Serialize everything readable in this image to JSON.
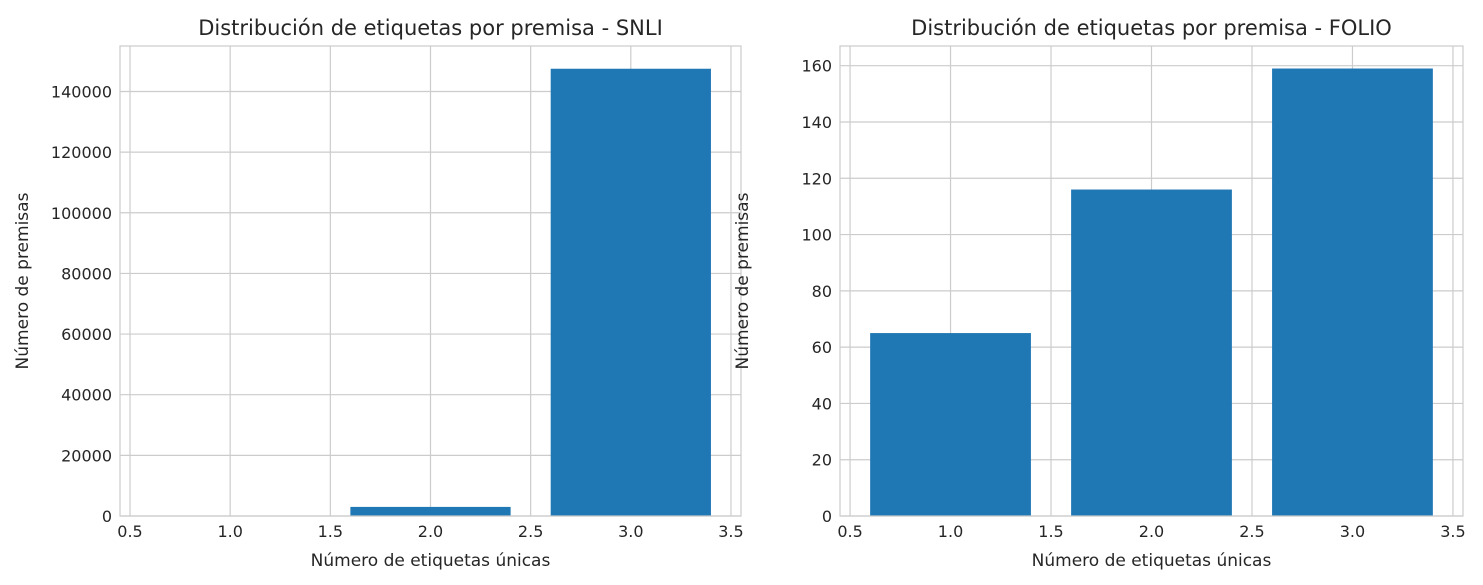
{
  "chart_data": [
    {
      "type": "bar",
      "title": "Distribución de etiquetas por premisa - SNLI",
      "xlabel": "Número de etiquetas únicas",
      "ylabel": "Número de premisas",
      "x": [
        1,
        2,
        3
      ],
      "values": [
        30,
        3000,
        147500
      ],
      "bar_width": 0.8,
      "bar_color": "#1f77b4",
      "xlim": [
        0.45,
        3.55
      ],
      "ylim": [
        0,
        155000
      ],
      "xticks": [
        0.5,
        1.0,
        1.5,
        2.0,
        2.5,
        3.0,
        3.5
      ],
      "xtick_labels": [
        "0.5",
        "1.0",
        "1.5",
        "2.0",
        "2.5",
        "3.0",
        "3.5"
      ],
      "yticks": [
        0,
        20000,
        40000,
        60000,
        80000,
        100000,
        120000,
        140000
      ],
      "ytick_labels": [
        "0",
        "20000",
        "40000",
        "60000",
        "80000",
        "100000",
        "120000",
        "140000"
      ],
      "grid": true
    },
    {
      "type": "bar",
      "title": "Distribución de etiquetas por premisa - FOLIO",
      "xlabel": "Número de etiquetas únicas",
      "ylabel": "Número de premisas",
      "x": [
        1,
        2,
        3
      ],
      "values": [
        65,
        116,
        159
      ],
      "bar_width": 0.8,
      "bar_color": "#1f77b4",
      "xlim": [
        0.45,
        3.55
      ],
      "ylim": [
        0,
        167
      ],
      "xticks": [
        0.5,
        1.0,
        1.5,
        2.0,
        2.5,
        3.0,
        3.5
      ],
      "xtick_labels": [
        "0.5",
        "1.0",
        "1.5",
        "2.0",
        "2.5",
        "3.0",
        "3.5"
      ],
      "yticks": [
        0,
        20,
        40,
        60,
        80,
        100,
        120,
        140,
        160
      ],
      "ytick_labels": [
        "0",
        "20",
        "40",
        "60",
        "80",
        "100",
        "120",
        "140",
        "160"
      ],
      "grid": true
    }
  ]
}
